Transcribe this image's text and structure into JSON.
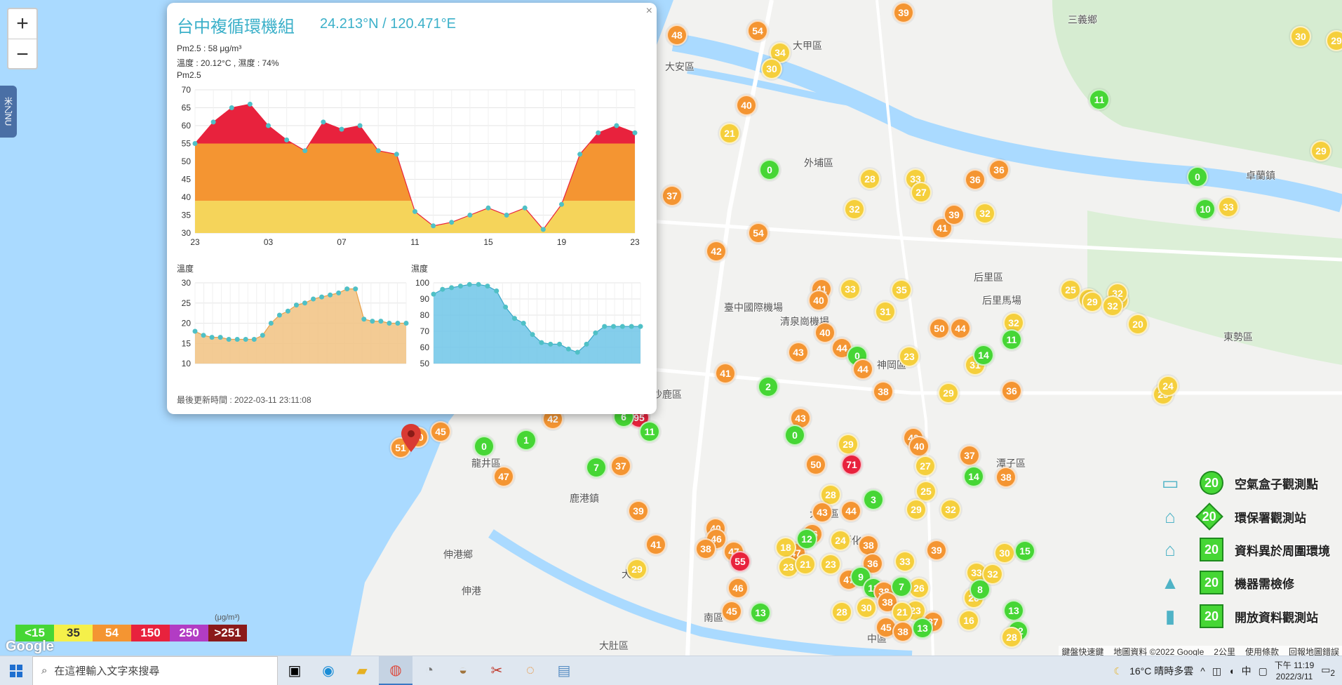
{
  "map": {
    "places": [
      {
        "text": "大甲區"
      },
      {
        "text": "大安區"
      },
      {
        "text": "外埔區"
      },
      {
        "text": "后里區"
      },
      {
        "text": "神岡區"
      },
      {
        "text": "沙鹿區"
      },
      {
        "text": "龍井區"
      },
      {
        "text": "伸港鄉"
      },
      {
        "text": "伸港"
      },
      {
        "text": "大肚區"
      },
      {
        "text": "大肚"
      },
      {
        "text": "南區"
      },
      {
        "text": "中區"
      },
      {
        "text": "卓蘭鎮"
      },
      {
        "text": "三義鄉"
      },
      {
        "text": "東勢區"
      },
      {
        "text": "后里馬場"
      },
      {
        "text": "清泉崗機場"
      },
      {
        "text": "臺中國際機場"
      },
      {
        "text": "大雅區"
      },
      {
        "text": "潭子區"
      },
      {
        "text": "鹿港鎮"
      },
      {
        "text": "彰化市"
      }
    ],
    "markers": [
      {
        "v": "48",
        "c": "orange"
      },
      {
        "v": "54",
        "c": "orange"
      },
      {
        "v": "34",
        "c": "yellow"
      },
      {
        "v": "30",
        "c": "yellow"
      },
      {
        "v": "39",
        "c": "orange"
      },
      {
        "v": "40",
        "c": "orange"
      },
      {
        "v": "21",
        "c": "yellow"
      },
      {
        "v": "0",
        "c": "green"
      },
      {
        "v": "28",
        "c": "yellow"
      },
      {
        "v": "33",
        "c": "yellow"
      },
      {
        "v": "27",
        "c": "yellow"
      },
      {
        "v": "36",
        "c": "orange"
      },
      {
        "v": "36",
        "c": "orange"
      },
      {
        "v": "32",
        "c": "yellow"
      },
      {
        "v": "41",
        "c": "orange"
      },
      {
        "v": "39",
        "c": "orange"
      },
      {
        "v": "32",
        "c": "yellow"
      },
      {
        "v": "37",
        "c": "orange"
      },
      {
        "v": "54",
        "c": "orange"
      },
      {
        "v": "42",
        "c": "orange"
      },
      {
        "v": "41",
        "c": "orange"
      },
      {
        "v": "40",
        "c": "orange"
      },
      {
        "v": "33",
        "c": "yellow"
      },
      {
        "v": "35",
        "c": "yellow"
      },
      {
        "v": "31",
        "c": "yellow"
      },
      {
        "v": "50",
        "c": "orange"
      },
      {
        "v": "44",
        "c": "orange"
      },
      {
        "v": "32",
        "c": "yellow"
      },
      {
        "v": "40",
        "c": "orange"
      },
      {
        "v": "44",
        "c": "orange"
      },
      {
        "v": "43",
        "c": "orange"
      },
      {
        "v": "0",
        "c": "green"
      },
      {
        "v": "23",
        "c": "yellow"
      },
      {
        "v": "31",
        "c": "yellow"
      },
      {
        "v": "14",
        "c": "green"
      },
      {
        "v": "11",
        "c": "green"
      },
      {
        "v": "41",
        "c": "orange"
      },
      {
        "v": "2",
        "c": "green"
      },
      {
        "v": "44",
        "c": "orange"
      },
      {
        "v": "38",
        "c": "orange"
      },
      {
        "v": "29",
        "c": "yellow"
      },
      {
        "v": "36",
        "c": "orange"
      },
      {
        "v": "95",
        "c": "red"
      },
      {
        "v": "6",
        "c": "green"
      },
      {
        "v": "11",
        "c": "green"
      },
      {
        "v": "42",
        "c": "orange"
      },
      {
        "v": "1",
        "c": "green"
      },
      {
        "v": "0",
        "c": "green"
      },
      {
        "v": "40",
        "c": "orange"
      },
      {
        "v": "45",
        "c": "orange"
      },
      {
        "v": "51",
        "c": "orange"
      },
      {
        "v": "47",
        "c": "orange"
      },
      {
        "v": "7",
        "c": "green"
      },
      {
        "v": "37",
        "c": "orange"
      },
      {
        "v": "43",
        "c": "orange"
      },
      {
        "v": "0",
        "c": "green"
      },
      {
        "v": "29",
        "c": "yellow"
      },
      {
        "v": "71",
        "c": "red"
      },
      {
        "v": "50",
        "c": "orange"
      },
      {
        "v": "42",
        "c": "orange"
      },
      {
        "v": "40",
        "c": "orange"
      },
      {
        "v": "27",
        "c": "yellow"
      },
      {
        "v": "37",
        "c": "orange"
      },
      {
        "v": "14",
        "c": "green"
      },
      {
        "v": "25",
        "c": "yellow"
      },
      {
        "v": "38",
        "c": "orange"
      },
      {
        "v": "29",
        "c": "yellow"
      },
      {
        "v": "32",
        "c": "yellow"
      },
      {
        "v": "3",
        "c": "green"
      },
      {
        "v": "28",
        "c": "yellow"
      },
      {
        "v": "44",
        "c": "orange"
      },
      {
        "v": "43",
        "c": "orange"
      },
      {
        "v": "36",
        "c": "orange"
      },
      {
        "v": "24",
        "c": "yellow"
      },
      {
        "v": "38",
        "c": "orange"
      },
      {
        "v": "47",
        "c": "orange"
      },
      {
        "v": "40",
        "c": "orange"
      },
      {
        "v": "46",
        "c": "orange"
      },
      {
        "v": "47",
        "c": "orange"
      },
      {
        "v": "38",
        "c": "orange"
      },
      {
        "v": "29",
        "c": "yellow"
      },
      {
        "v": "41",
        "c": "orange"
      },
      {
        "v": "39",
        "c": "orange"
      },
      {
        "v": "18",
        "c": "yellow"
      },
      {
        "v": "12",
        "c": "green"
      },
      {
        "v": "55",
        "c": "red"
      },
      {
        "v": "36",
        "c": "orange"
      },
      {
        "v": "33",
        "c": "yellow"
      },
      {
        "v": "39",
        "c": "orange"
      },
      {
        "v": "47",
        "c": "orange"
      },
      {
        "v": "23",
        "c": "yellow"
      },
      {
        "v": "21",
        "c": "yellow"
      },
      {
        "v": "23",
        "c": "yellow"
      },
      {
        "v": "9",
        "c": "green"
      },
      {
        "v": "46",
        "c": "orange"
      },
      {
        "v": "45",
        "c": "orange"
      },
      {
        "v": "28",
        "c": "yellow"
      },
      {
        "v": "12",
        "c": "green"
      },
      {
        "v": "13",
        "c": "green"
      },
      {
        "v": "38",
        "c": "orange"
      },
      {
        "v": "26",
        "c": "yellow"
      },
      {
        "v": "23",
        "c": "yellow"
      },
      {
        "v": "37",
        "c": "orange"
      },
      {
        "v": "7",
        "c": "green"
      },
      {
        "v": "38",
        "c": "orange"
      },
      {
        "v": "30",
        "c": "yellow"
      },
      {
        "v": "21",
        "c": "yellow"
      },
      {
        "v": "45",
        "c": "orange"
      },
      {
        "v": "38",
        "c": "orange"
      },
      {
        "v": "13",
        "c": "green"
      },
      {
        "v": "16",
        "c": "yellow"
      },
      {
        "v": "33",
        "c": "yellow"
      },
      {
        "v": "30",
        "c": "yellow"
      },
      {
        "v": "26",
        "c": "yellow"
      },
      {
        "v": "8",
        "c": "green"
      },
      {
        "v": "32",
        "c": "yellow"
      },
      {
        "v": "13",
        "c": "green"
      },
      {
        "v": "12",
        "c": "green"
      },
      {
        "v": "15",
        "c": "green"
      },
      {
        "v": "28",
        "c": "yellow"
      },
      {
        "v": "11",
        "c": "green"
      },
      {
        "v": "0",
        "c": "green"
      },
      {
        "v": "10",
        "c": "green"
      },
      {
        "v": "33",
        "c": "yellow"
      },
      {
        "v": "29",
        "c": "yellow"
      },
      {
        "v": "30",
        "c": "yellow"
      },
      {
        "v": "29",
        "c": "yellow"
      },
      {
        "v": "25",
        "c": "yellow"
      },
      {
        "v": "27",
        "c": "yellow"
      },
      {
        "v": "32",
        "c": "yellow"
      },
      {
        "v": "29",
        "c": "yellow"
      },
      {
        "v": "32",
        "c": "yellow"
      },
      {
        "v": "32",
        "c": "yellow"
      },
      {
        "v": "20",
        "c": "yellow"
      },
      {
        "v": "25",
        "c": "yellow"
      },
      {
        "v": "24",
        "c": "yellow"
      }
    ]
  },
  "popup": {
    "title": "台中複循環機組",
    "coords": "24.213°N / 120.471°E",
    "pm25": "Pm2.5 : 58 μg/m³",
    "temp_humid": "溫度 : 20.12°C , 濕度 : 74%",
    "chart_label": "Pm2.5",
    "temp_label": "溫度",
    "humid_label": "濕度",
    "updated": "最後更新時間 : 2022-03-11 23:11:08",
    "close": "×"
  },
  "chart_data": [
    {
      "type": "area",
      "title": "Pm2.5",
      "x_ticks": [
        "23",
        "03",
        "07",
        "11",
        "15",
        "19",
        "23"
      ],
      "ylim": [
        30,
        70
      ],
      "y_ticks": [
        30,
        35,
        40,
        45,
        50,
        55,
        60,
        65,
        70
      ],
      "values": [
        55,
        61,
        65,
        66,
        60,
        56,
        53,
        61,
        59,
        60,
        53,
        52,
        36,
        32,
        33,
        35,
        37,
        35,
        37,
        31,
        38,
        52,
        58,
        60,
        58
      ],
      "bands": [
        {
          "from": 30,
          "to": 39,
          "color": "#f5d45a"
        },
        {
          "from": 39,
          "to": 55,
          "color": "#f49532"
        },
        {
          "from": 55,
          "to": 70,
          "color": "#e8223d"
        }
      ]
    },
    {
      "type": "area",
      "title": "溫度",
      "ylim": [
        10,
        30
      ],
      "y_ticks": [
        10,
        15,
        20,
        25,
        30
      ],
      "values": [
        18,
        17,
        16.5,
        16.5,
        16,
        16,
        16,
        16,
        17,
        20,
        22,
        23,
        24.5,
        25,
        26,
        26.5,
        27,
        27.5,
        28.5,
        28.5,
        21,
        20.5,
        20.5,
        20,
        20,
        20
      ],
      "color": "#f1c281"
    },
    {
      "type": "area",
      "title": "濕度",
      "ylim": [
        50,
        100
      ],
      "y_ticks": [
        50,
        60,
        70,
        80,
        90,
        100
      ],
      "values": [
        93,
        96,
        97,
        98,
        99,
        99,
        98,
        95,
        85,
        78,
        75,
        68,
        63,
        62,
        62,
        59,
        57,
        62,
        69,
        73,
        73,
        73,
        73,
        73
      ],
      "color": "#6ec6e8"
    }
  ],
  "aqi_legend": {
    "items": [
      {
        "label": "<15",
        "color": "#46d635"
      },
      {
        "label": "35",
        "color": "#f5f04a"
      },
      {
        "label": "54",
        "color": "#f49532"
      },
      {
        "label": "150",
        "color": "#e8223d"
      },
      {
        "label": "250",
        "color": "#b23cc4"
      },
      {
        "label": ">251",
        "color": "#8b1a1a"
      }
    ],
    "unit": "(μg/m³)"
  },
  "station_legend": [
    {
      "label": "空氣盒子觀測點",
      "value": "20",
      "shape": "round"
    },
    {
      "label": "環保署觀測站",
      "value": "20",
      "shape": "diamond"
    },
    {
      "label": "資料異於周圍環境",
      "value": "20",
      "shape": "pentagon"
    },
    {
      "label": "機器需檢修",
      "value": "20",
      "shape": "triangle"
    },
    {
      "label": "開放資料觀測站",
      "value": "20",
      "shape": "square"
    }
  ],
  "attribution": {
    "shortcuts": "鍵盤快速鍵",
    "map_data": "地圖資料 ©2022 Google",
    "scale": "2公里",
    "terms": "使用條款",
    "report": "回報地圖錯誤"
  },
  "side_tab": "米乙NU",
  "google_logo": "Google",
  "taskbar": {
    "search_placeholder": "在這裡輸入文字來搜尋",
    "weather": "16°C 晴時多雲",
    "ime": "中",
    "time": "下午 11:19",
    "date": "2022/3/11",
    "notifications": "2"
  }
}
